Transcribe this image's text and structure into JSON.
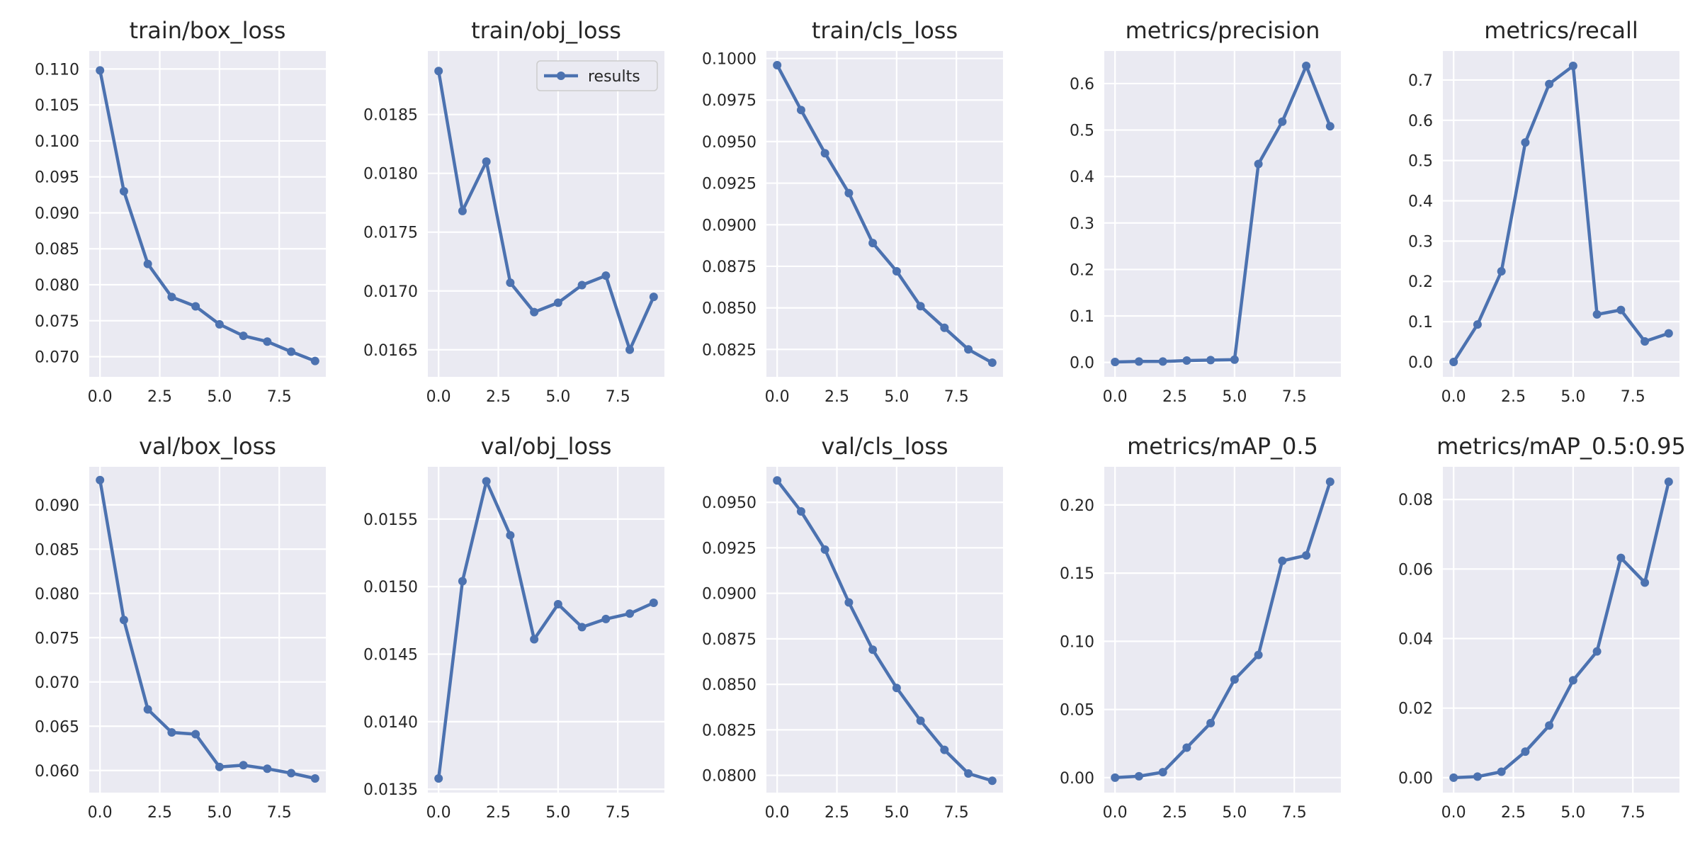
{
  "colors": {
    "series": "#4c72b0",
    "plot_background": "#eaeaf2",
    "grid": "#ffffff",
    "text": "#262626"
  },
  "chart_data": [
    {
      "type": "line",
      "title": "train/box_loss",
      "x": [
        0,
        1,
        2,
        3,
        4,
        5,
        6,
        7,
        8,
        9
      ],
      "series": [
        {
          "name": "results",
          "values": [
            0.1098,
            0.093,
            0.0829,
            0.0783,
            0.077,
            0.0745,
            0.0729,
            0.0721,
            0.0707,
            0.0694
          ]
        }
      ],
      "xlim": [
        -0.45,
        9.45
      ],
      "ylim": [
        0.0672,
        0.1125
      ],
      "xticks": [
        "0.0",
        "2.5",
        "5.0",
        "7.5"
      ],
      "yticks": [
        "0.070",
        "0.075",
        "0.080",
        "0.085",
        "0.090",
        "0.095",
        "0.100",
        "0.105",
        "0.110"
      ],
      "grid": true,
      "legend": null
    },
    {
      "type": "line",
      "title": "train/obj_loss",
      "x": [
        0,
        1,
        2,
        3,
        4,
        5,
        6,
        7,
        8,
        9
      ],
      "series": [
        {
          "name": "results",
          "values": [
            0.01887,
            0.01768,
            0.0181,
            0.01707,
            0.01682,
            0.0169,
            0.01705,
            0.01713,
            0.0165,
            0.01695
          ]
        }
      ],
      "xlim": [
        -0.45,
        9.45
      ],
      "ylim": [
        0.01627,
        0.01904
      ],
      "xticks": [
        "0.0",
        "2.5",
        "5.0",
        "7.5"
      ],
      "yticks": [
        "0.0165",
        "0.0170",
        "0.0175",
        "0.0180",
        "0.0185"
      ],
      "grid": true,
      "legend": "top-right"
    },
    {
      "type": "line",
      "title": "train/cls_loss",
      "x": [
        0,
        1,
        2,
        3,
        4,
        5,
        6,
        7,
        8,
        9
      ],
      "series": [
        {
          "name": "results",
          "values": [
            0.0996,
            0.0969,
            0.0943,
            0.0919,
            0.0889,
            0.0872,
            0.0851,
            0.0838,
            0.0825,
            0.0817
          ]
        }
      ],
      "xlim": [
        -0.45,
        9.45
      ],
      "ylim": [
        0.08085,
        0.10045
      ],
      "xticks": [
        "0.0",
        "2.5",
        "5.0",
        "7.5"
      ],
      "yticks": [
        "0.0825",
        "0.0850",
        "0.0875",
        "0.0900",
        "0.0925",
        "0.0950",
        "0.0975",
        "0.1000"
      ],
      "grid": true,
      "legend": null
    },
    {
      "type": "line",
      "title": "metrics/precision",
      "x": [
        0,
        1,
        2,
        3,
        4,
        5,
        6,
        7,
        8,
        9
      ],
      "series": [
        {
          "name": "results",
          "values": [
            0.001,
            0.002,
            0.002,
            0.004,
            0.005,
            0.006,
            0.427,
            0.518,
            0.638,
            0.508
          ]
        }
      ],
      "xlim": [
        -0.45,
        9.45
      ],
      "ylim": [
        -0.031,
        0.67
      ],
      "xticks": [
        "0.0",
        "2.5",
        "5.0",
        "7.5"
      ],
      "yticks": [
        "0.0",
        "0.1",
        "0.2",
        "0.3",
        "0.4",
        "0.5",
        "0.6"
      ],
      "grid": true,
      "legend": null
    },
    {
      "type": "line",
      "title": "metrics/recall",
      "x": [
        0,
        1,
        2,
        3,
        4,
        5,
        6,
        7,
        8,
        9
      ],
      "series": [
        {
          "name": "results",
          "values": [
            0.0,
            0.093,
            0.225,
            0.545,
            0.69,
            0.735,
            0.118,
            0.129,
            0.051,
            0.071
          ]
        }
      ],
      "xlim": [
        -0.45,
        9.45
      ],
      "ylim": [
        -0.037,
        0.772
      ],
      "xticks": [
        "0.0",
        "2.5",
        "5.0",
        "7.5"
      ],
      "yticks": [
        "0.0",
        "0.1",
        "0.2",
        "0.3",
        "0.4",
        "0.5",
        "0.6",
        "0.7"
      ],
      "grid": true,
      "legend": null
    },
    {
      "type": "line",
      "title": "val/box_loss",
      "x": [
        0,
        1,
        2,
        3,
        4,
        5,
        6,
        7,
        8,
        9
      ],
      "series": [
        {
          "name": "results",
          "values": [
            0.0928,
            0.077,
            0.0669,
            0.0643,
            0.0641,
            0.0604,
            0.0606,
            0.0602,
            0.0597,
            0.0591
          ]
        }
      ],
      "xlim": [
        -0.45,
        9.45
      ],
      "ylim": [
        0.0575,
        0.0943
      ],
      "xticks": [
        "0.0",
        "2.5",
        "5.0",
        "7.5"
      ],
      "yticks": [
        "0.060",
        "0.065",
        "0.070",
        "0.075",
        "0.080",
        "0.085",
        "0.090"
      ],
      "grid": true,
      "legend": null
    },
    {
      "type": "line",
      "title": "val/obj_loss",
      "x": [
        0,
        1,
        2,
        3,
        4,
        5,
        6,
        7,
        8,
        9
      ],
      "series": [
        {
          "name": "results",
          "values": [
            0.01358,
            0.01504,
            0.01578,
            0.01538,
            0.01461,
            0.01487,
            0.0147,
            0.01476,
            0.0148,
            0.01488
          ]
        }
      ],
      "xlim": [
        -0.45,
        9.45
      ],
      "ylim": [
        0.013475,
        0.015887
      ],
      "xticks": [
        "0.0",
        "2.5",
        "5.0",
        "7.5"
      ],
      "yticks": [
        "0.0135",
        "0.0140",
        "0.0145",
        "0.0150",
        "0.0155"
      ],
      "grid": true,
      "legend": null
    },
    {
      "type": "line",
      "title": "val/cls_loss",
      "x": [
        0,
        1,
        2,
        3,
        4,
        5,
        6,
        7,
        8,
        9
      ],
      "series": [
        {
          "name": "results",
          "values": [
            0.0962,
            0.0945,
            0.0924,
            0.0895,
            0.0869,
            0.0848,
            0.083,
            0.0814,
            0.0801,
            0.0797
          ]
        }
      ],
      "xlim": [
        -0.45,
        9.45
      ],
      "ylim": [
        0.07905,
        0.09695
      ],
      "xticks": [
        "0.0",
        "2.5",
        "5.0",
        "7.5"
      ],
      "yticks": [
        "0.0800",
        "0.0825",
        "0.0850",
        "0.0875",
        "0.0900",
        "0.0925",
        "0.0950"
      ],
      "grid": true,
      "legend": null
    },
    {
      "type": "line",
      "title": "metrics/mAP_0.5",
      "x": [
        0,
        1,
        2,
        3,
        4,
        5,
        6,
        7,
        8,
        9
      ],
      "series": [
        {
          "name": "results",
          "values": [
            0.0,
            0.001,
            0.004,
            0.022,
            0.04,
            0.072,
            0.09,
            0.159,
            0.163,
            0.217
          ]
        }
      ],
      "xlim": [
        -0.45,
        9.45
      ],
      "ylim": [
        -0.011,
        0.228
      ],
      "xticks": [
        "0.0",
        "2.5",
        "5.0",
        "7.5"
      ],
      "yticks": [
        "0.00",
        "0.05",
        "0.10",
        "0.15",
        "0.20"
      ],
      "grid": true,
      "legend": null
    },
    {
      "type": "line",
      "title": "metrics/mAP_0.5:0.95",
      "x": [
        0,
        1,
        2,
        3,
        4,
        5,
        6,
        7,
        8,
        9
      ],
      "series": [
        {
          "name": "results",
          "values": [
            0.0,
            0.0003,
            0.0017,
            0.0075,
            0.015,
            0.028,
            0.0363,
            0.0632,
            0.0561,
            0.0851
          ]
        }
      ],
      "xlim": [
        -0.45,
        9.45
      ],
      "ylim": [
        -0.0043,
        0.0894
      ],
      "xticks": [
        "0.0",
        "2.5",
        "5.0",
        "7.5"
      ],
      "yticks": [
        "0.00",
        "0.02",
        "0.04",
        "0.06",
        "0.08"
      ],
      "grid": true,
      "legend": null
    }
  ]
}
